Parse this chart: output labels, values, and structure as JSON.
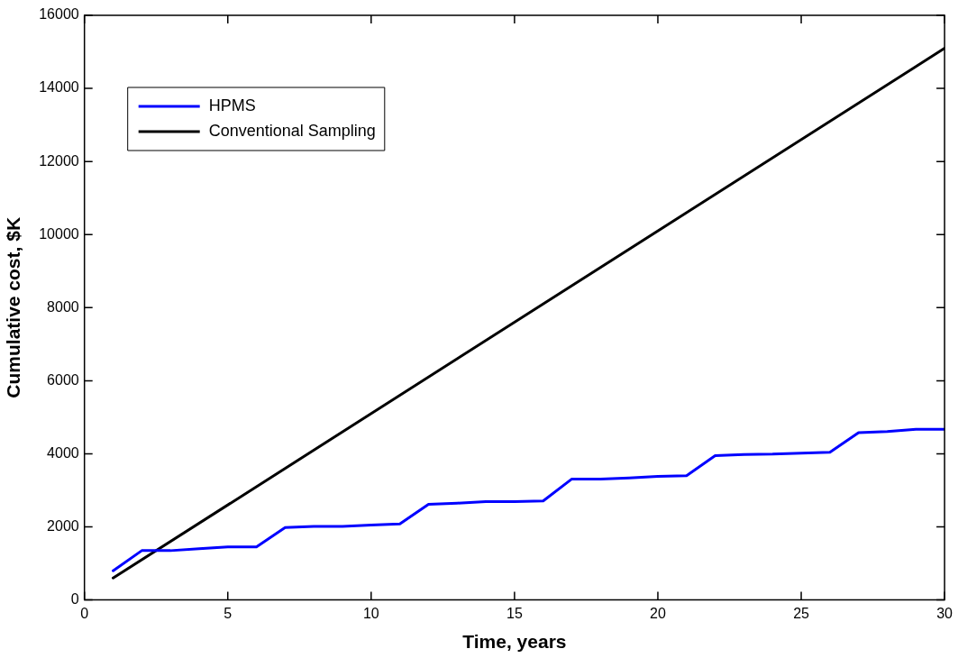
{
  "chart_data": {
    "type": "line",
    "xlabel": "Time, years",
    "ylabel": "Cumulative cost, $K",
    "xlim": [
      0,
      30
    ],
    "xticks": [
      0,
      5,
      10,
      15,
      20,
      25,
      30
    ],
    "ylim": [
      0,
      16000
    ],
    "yticks": [
      0,
      2000,
      4000,
      6000,
      8000,
      10000,
      12000,
      14000,
      16000
    ],
    "grid": false,
    "legend": "top left",
    "marker": "none",
    "line_style": "solid",
    "series": [
      {
        "name": "HPMS",
        "color": "#0000ff",
        "x": [
          1,
          2,
          3,
          4,
          5,
          6,
          7,
          8,
          9,
          10,
          11,
          12,
          13,
          14,
          15,
          16,
          17,
          18,
          19,
          20,
          21,
          22,
          23,
          24,
          25,
          26,
          27,
          28,
          29,
          30
        ],
        "values": [
          800,
          1350,
          1350,
          1400,
          1450,
          1450,
          1980,
          2010,
          2010,
          2050,
          2080,
          2620,
          2650,
          2690,
          2690,
          2710,
          3310,
          3310,
          3340,
          3380,
          3400,
          3950,
          3980,
          3990,
          4020,
          4040,
          4580,
          4610,
          4670,
          4670
        ]
      },
      {
        "name": "Conventional Sampling",
        "color": "#000000",
        "x": [
          1,
          30
        ],
        "values": [
          600,
          15100
        ]
      }
    ]
  }
}
